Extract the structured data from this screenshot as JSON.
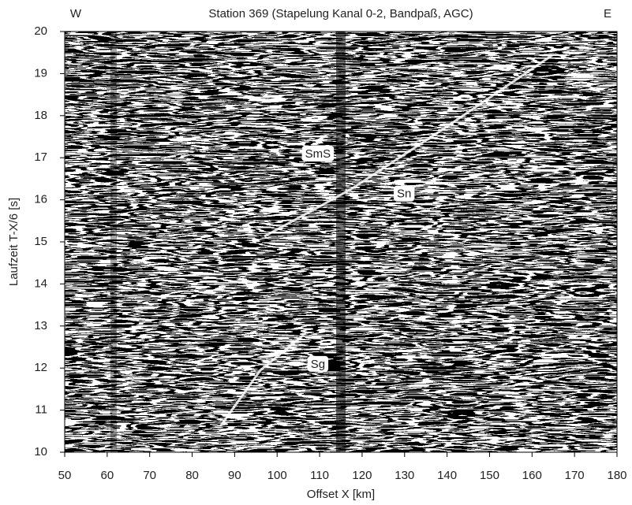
{
  "chart_data": {
    "type": "image",
    "title": "Station 369 (Stapelung Kanal 0-2, Bandpaß, AGC)",
    "left_label": "W",
    "right_label": "E",
    "xlabel": "Offset X [km]",
    "ylabel": "Laufzeit T-X/6 [s]",
    "xlim": [
      50,
      180
    ],
    "ylim": [
      10,
      20
    ],
    "xticks": [
      50,
      60,
      70,
      80,
      90,
      100,
      110,
      120,
      130,
      140,
      150,
      160,
      170,
      180
    ],
    "yticks": [
      10,
      11,
      12,
      13,
      14,
      15,
      16,
      17,
      18,
      19,
      20
    ],
    "grid": false,
    "annotations": [
      {
        "text": "SmS",
        "x": 109.6,
        "y": 17.1
      },
      {
        "text": "Sn",
        "x": 129.9,
        "y": 16.15
      },
      {
        "text": "Sg",
        "x": 109.6,
        "y": 12.1
      }
    ]
  }
}
